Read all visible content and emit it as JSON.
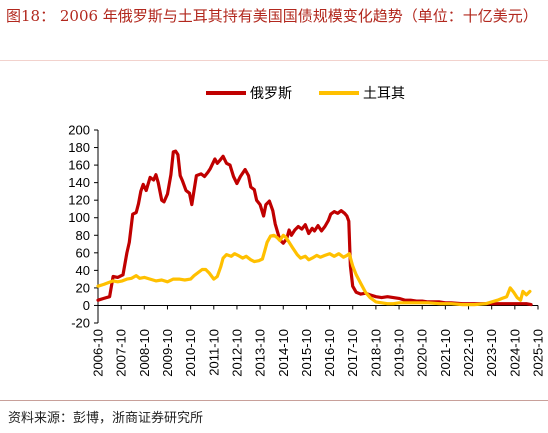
{
  "title": "图18：  2006 年俄罗斯与土耳其持有美国国债规模变化趋势（单位：十亿美元）",
  "source": "资料来源：彭博，浙商证券研究所",
  "chart_data": {
    "type": "line",
    "title": "2006 年俄罗斯与土耳其持有美国国债规模变化趋势（单位：十亿美元）",
    "xlabel": "",
    "ylabel": "",
    "ylim": [
      -20,
      200
    ],
    "yticks": [
      "-20",
      "0",
      "20",
      "40",
      "60",
      "80",
      "100",
      "120",
      "140",
      "160",
      "180",
      "200"
    ],
    "xticks": [
      "2006-10",
      "2007-10",
      "2008-10",
      "2009-10",
      "2010-10",
      "2011-10",
      "2012-10",
      "2013-10",
      "2014-10",
      "2015-10",
      "2016-10",
      "2017-10",
      "2018-10",
      "2019-10",
      "2020-10",
      "2021-10",
      "2022-10",
      "2023-10",
      "2024-10",
      "2025-10"
    ],
    "grid": false,
    "legend": "top",
    "series": [
      {
        "name": "俄罗斯",
        "color": "#c00000",
        "points": [
          [
            2006.75,
            6
          ],
          [
            2007.0,
            8
          ],
          [
            2007.25,
            10
          ],
          [
            2007.4,
            33
          ],
          [
            2007.6,
            32
          ],
          [
            2007.83,
            35
          ],
          [
            2008.0,
            60
          ],
          [
            2008.1,
            72
          ],
          [
            2008.25,
            104
          ],
          [
            2008.4,
            106
          ],
          [
            2008.5,
            116
          ],
          [
            2008.6,
            130
          ],
          [
            2008.7,
            138
          ],
          [
            2008.83,
            131
          ],
          [
            2009.0,
            146
          ],
          [
            2009.15,
            143
          ],
          [
            2009.25,
            149
          ],
          [
            2009.35,
            140
          ],
          [
            2009.5,
            120
          ],
          [
            2009.6,
            118
          ],
          [
            2009.75,
            127
          ],
          [
            2009.9,
            149
          ],
          [
            2010.0,
            175
          ],
          [
            2010.1,
            176
          ],
          [
            2010.2,
            172
          ],
          [
            2010.3,
            148
          ],
          [
            2010.4,
            142
          ],
          [
            2010.55,
            131
          ],
          [
            2010.7,
            128
          ],
          [
            2010.8,
            115
          ],
          [
            2011.0,
            148
          ],
          [
            2011.2,
            150
          ],
          [
            2011.35,
            147
          ],
          [
            2011.5,
            152
          ],
          [
            2011.6,
            156
          ],
          [
            2011.8,
            167
          ],
          [
            2011.9,
            162
          ],
          [
            2012.0,
            165
          ],
          [
            2012.15,
            170
          ],
          [
            2012.3,
            162
          ],
          [
            2012.45,
            160
          ],
          [
            2012.6,
            147
          ],
          [
            2012.75,
            139
          ],
          [
            2012.9,
            147
          ],
          [
            2013.1,
            155
          ],
          [
            2013.25,
            148
          ],
          [
            2013.35,
            135
          ],
          [
            2013.5,
            132
          ],
          [
            2013.6,
            120
          ],
          [
            2013.75,
            115
          ],
          [
            2013.9,
            102
          ],
          [
            2014.0,
            115
          ],
          [
            2014.15,
            119
          ],
          [
            2014.3,
            108
          ],
          [
            2014.4,
            93
          ],
          [
            2014.6,
            75
          ],
          [
            2014.75,
            71
          ],
          [
            2014.9,
            76
          ],
          [
            2015.0,
            86
          ],
          [
            2015.1,
            80
          ],
          [
            2015.25,
            86
          ],
          [
            2015.4,
            90
          ],
          [
            2015.55,
            87
          ],
          [
            2015.7,
            92
          ],
          [
            2015.85,
            82
          ],
          [
            2016.0,
            88
          ],
          [
            2016.1,
            85
          ],
          [
            2016.25,
            91
          ],
          [
            2016.4,
            85
          ],
          [
            2016.55,
            90
          ],
          [
            2016.7,
            97
          ],
          [
            2016.8,
            104
          ],
          [
            2016.95,
            107
          ],
          [
            2017.1,
            105
          ],
          [
            2017.25,
            108
          ],
          [
            2017.4,
            105
          ],
          [
            2017.5,
            102
          ],
          [
            2017.58,
            96
          ],
          [
            2017.65,
            45
          ],
          [
            2017.75,
            22
          ],
          [
            2017.9,
            15
          ],
          [
            2018.1,
            13
          ],
          [
            2018.3,
            14
          ],
          [
            2018.5,
            12
          ],
          [
            2018.75,
            10
          ],
          [
            2019.0,
            9
          ],
          [
            2019.25,
            10
          ],
          [
            2019.5,
            9
          ],
          [
            2019.75,
            8
          ],
          [
            2020.0,
            6
          ],
          [
            2020.25,
            6
          ],
          [
            2020.5,
            5
          ],
          [
            2020.75,
            5
          ],
          [
            2021.0,
            4
          ],
          [
            2021.5,
            4
          ],
          [
            2021.75,
            3
          ],
          [
            2022.0,
            3
          ],
          [
            2022.5,
            2
          ],
          [
            2023.0,
            2
          ],
          [
            2023.5,
            2
          ],
          [
            2024.0,
            2
          ],
          [
            2024.5,
            2
          ],
          [
            2025.0,
            2
          ],
          [
            2025.25,
            2
          ],
          [
            2025.45,
            1
          ]
        ]
      },
      {
        "name": "土耳其",
        "color": "#ffc000",
        "points": [
          [
            2006.75,
            22
          ],
          [
            2007.0,
            24
          ],
          [
            2007.2,
            26
          ],
          [
            2007.4,
            28
          ],
          [
            2007.6,
            27
          ],
          [
            2007.8,
            28
          ],
          [
            2008.0,
            30
          ],
          [
            2008.2,
            31
          ],
          [
            2008.4,
            34
          ],
          [
            2008.55,
            31
          ],
          [
            2008.75,
            32
          ],
          [
            2009.0,
            30
          ],
          [
            2009.25,
            28
          ],
          [
            2009.5,
            29
          ],
          [
            2009.75,
            27
          ],
          [
            2010.0,
            30
          ],
          [
            2010.25,
            30
          ],
          [
            2010.5,
            29
          ],
          [
            2010.75,
            30
          ],
          [
            2010.9,
            34
          ],
          [
            2011.1,
            38
          ],
          [
            2011.25,
            41
          ],
          [
            2011.4,
            41
          ],
          [
            2011.55,
            37
          ],
          [
            2011.75,
            30
          ],
          [
            2011.9,
            33
          ],
          [
            2012.05,
            44
          ],
          [
            2012.15,
            54
          ],
          [
            2012.3,
            58
          ],
          [
            2012.5,
            56
          ],
          [
            2012.65,
            59
          ],
          [
            2012.8,
            57
          ],
          [
            2013.0,
            54
          ],
          [
            2013.15,
            56
          ],
          [
            2013.35,
            52
          ],
          [
            2013.5,
            50
          ],
          [
            2013.7,
            51
          ],
          [
            2013.85,
            53
          ],
          [
            2013.95,
            62
          ],
          [
            2014.05,
            72
          ],
          [
            2014.2,
            79
          ],
          [
            2014.35,
            80
          ],
          [
            2014.5,
            77
          ],
          [
            2014.6,
            74
          ],
          [
            2014.75,
            80
          ],
          [
            2014.85,
            78
          ],
          [
            2015.0,
            72
          ],
          [
            2015.15,
            66
          ],
          [
            2015.35,
            58
          ],
          [
            2015.5,
            54
          ],
          [
            2015.7,
            56
          ],
          [
            2015.85,
            52
          ],
          [
            2016.0,
            54
          ],
          [
            2016.2,
            57
          ],
          [
            2016.35,
            55
          ],
          [
            2016.55,
            57
          ],
          [
            2016.75,
            59
          ],
          [
            2016.95,
            56
          ],
          [
            2017.15,
            59
          ],
          [
            2017.35,
            55
          ],
          [
            2017.5,
            57
          ],
          [
            2017.6,
            59
          ],
          [
            2017.75,
            45
          ],
          [
            2017.9,
            35
          ],
          [
            2018.1,
            25
          ],
          [
            2018.3,
            15
          ],
          [
            2018.5,
            9
          ],
          [
            2018.75,
            4
          ],
          [
            2019.0,
            3
          ],
          [
            2019.25,
            2
          ],
          [
            2019.5,
            2
          ],
          [
            2019.75,
            3
          ],
          [
            2020.0,
            3
          ],
          [
            2020.5,
            3
          ],
          [
            2021.0,
            3
          ],
          [
            2021.5,
            2
          ],
          [
            2022.0,
            2
          ],
          [
            2022.5,
            1
          ],
          [
            2023.0,
            1
          ],
          [
            2023.5,
            2
          ],
          [
            2023.75,
            4
          ],
          [
            2024.0,
            6
          ],
          [
            2024.2,
            8
          ],
          [
            2024.4,
            10
          ],
          [
            2024.55,
            20
          ],
          [
            2024.7,
            15
          ],
          [
            2024.85,
            9
          ],
          [
            2025.0,
            6
          ],
          [
            2025.1,
            16
          ],
          [
            2025.25,
            12
          ],
          [
            2025.4,
            16
          ]
        ]
      }
    ]
  }
}
